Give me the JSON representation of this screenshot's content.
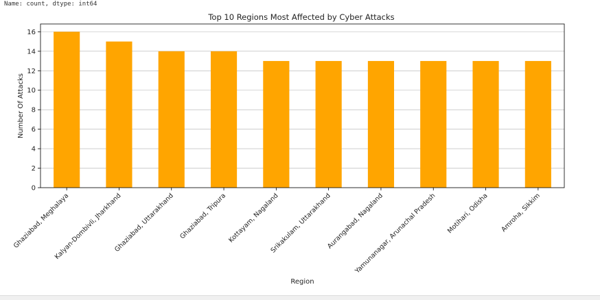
{
  "console": {
    "output_line": "Name: count, dtype: int64"
  },
  "chart_data": {
    "type": "bar",
    "title": "Top 10 Regions Most Affected by Cyber Attacks",
    "xlabel": "Region",
    "ylabel": "Number Of Attacks",
    "categories": [
      "Ghaziabad, Meghalaya",
      "Kalyan-Dombivli, Jharkhand",
      "Ghaziabad, Uttarakhand",
      "Ghaziabad, Tripura",
      "Kottayam, Nagaland",
      "Srikakulam, Uttarakhand",
      "Aurangabad, Nagaland",
      "Yamunanagar, Arunachal Pradesh",
      "Motihari, Odisha",
      "Amroha, Sikkim"
    ],
    "values": [
      16,
      15,
      14,
      14,
      13,
      13,
      13,
      13,
      13,
      13
    ],
    "ylim": [
      0,
      16.8
    ],
    "yticks": [
      0,
      2,
      4,
      6,
      8,
      10,
      12,
      14,
      16
    ],
    "grid": "y",
    "legend": "none",
    "colors": {
      "bar": "#FFA500",
      "grid": "#b0b0b0",
      "axis": "#000000"
    }
  }
}
